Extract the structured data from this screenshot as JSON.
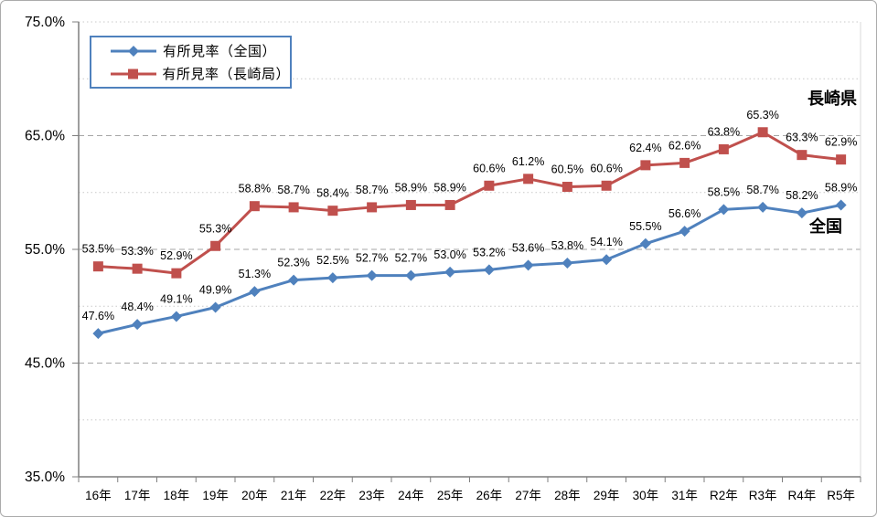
{
  "chart_data": {
    "type": "line",
    "title": "",
    "categories": [
      "16年",
      "17年",
      "18年",
      "19年",
      "20年",
      "21年",
      "22年",
      "23年",
      "24年",
      "25年",
      "26年",
      "27年",
      "28年",
      "29年",
      "30年",
      "31年",
      "R2年",
      "R3年",
      "R4年",
      "R5年"
    ],
    "series": [
      {
        "name": "有所見率（全国）",
        "short_name": "全国",
        "marker": "diamond",
        "color": "#4f81bd",
        "values": [
          47.6,
          48.4,
          49.1,
          49.9,
          51.3,
          52.3,
          52.5,
          52.7,
          52.7,
          53.0,
          53.2,
          53.6,
          53.8,
          54.1,
          55.5,
          56.6,
          58.5,
          58.7,
          58.2,
          58.9
        ]
      },
      {
        "name": "有所見率（長崎局）",
        "short_name": "長崎県",
        "marker": "square",
        "color": "#c0504d",
        "values": [
          53.5,
          53.3,
          52.9,
          55.3,
          58.8,
          58.7,
          58.4,
          58.7,
          58.9,
          58.9,
          60.6,
          61.2,
          60.5,
          60.6,
          62.4,
          62.6,
          63.8,
          65.3,
          63.3,
          62.9
        ]
      }
    ],
    "ylim": [
      35,
      75
    ],
    "ytick_step": 10,
    "ytick_labels": [
      "35.0%",
      "45.0%",
      "55.0%",
      "65.0%",
      "75.0%"
    ],
    "data_label_format": "0.0%",
    "grid": {
      "major": "dashed",
      "minor": "dotted"
    },
    "legend_position": "inside-top-left",
    "annotations": [
      {
        "text": "長崎県",
        "refers_to": "有所見率（長崎局）"
      },
      {
        "text": "全国",
        "refers_to": "有所見率（全国）"
      }
    ]
  },
  "legend": {
    "items": [
      {
        "label": "有所見率（全国）",
        "color": "#4f81bd",
        "marker": "diamond"
      },
      {
        "label": "有所見率（長崎局）",
        "color": "#c0504d",
        "marker": "square"
      }
    ]
  },
  "annotations": {
    "nagasaki": "長崎県",
    "zenkoku": "全国"
  },
  "colors": {
    "axis": "#7f7f7f",
    "grid_major": "#a6a6a6",
    "grid_minor": "#c9c9c9",
    "plot_right_border": "#d9d9d9",
    "text": "#000000"
  }
}
